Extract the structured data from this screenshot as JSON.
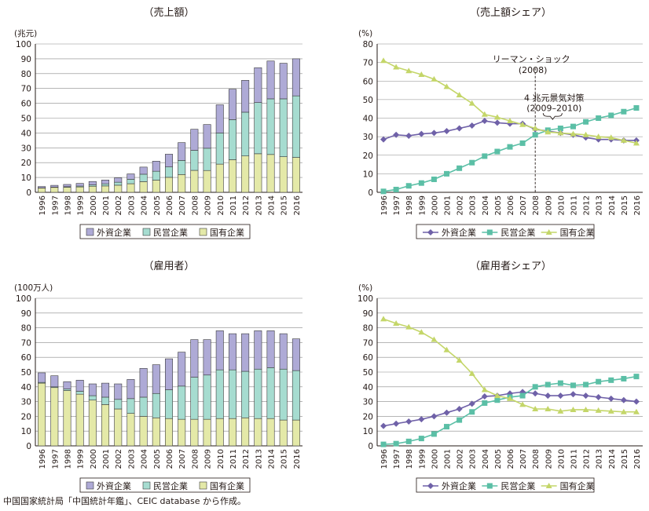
{
  "source_note": "中国国家統計局「中国統計年鑑」、CEIC database から作成。",
  "legend_labels": [
    "外資企業",
    "民営企業",
    "国有企業"
  ],
  "colors": {
    "foreign": "#aeaad6",
    "private": "#a6dcd0",
    "state": "#e4e9a8",
    "foreign_line": "#6f61a8",
    "private_line": "#5bbfa6",
    "state_line": "#c4d669",
    "axis": "#231815"
  },
  "chart_data": [
    {
      "type": "bar",
      "title": "（売上額）",
      "unit": "(兆元)",
      "ylim": [
        0,
        100
      ],
      "yticks": [
        0,
        10,
        20,
        30,
        40,
        50,
        60,
        70,
        80,
        90,
        100
      ],
      "categories": [
        "1996",
        "1997",
        "1998",
        "1999",
        "2000",
        "2001",
        "2002",
        "2003",
        "2004",
        "2005",
        "2006",
        "2007",
        "2008",
        "2009",
        "2010",
        "2011",
        "2012",
        "2013",
        "2014",
        "2015",
        "2016"
      ],
      "series": [
        {
          "name": "国有企業",
          "values": [
            2.9,
            3.3,
            3.4,
            3.6,
            4.1,
            4.3,
            4.8,
            5.8,
            7.2,
            8.2,
            10.1,
            12.0,
            14.8,
            14.7,
            19.0,
            22.0,
            24.5,
            26.0,
            25.5,
            24.0,
            23.5
          ]
        },
        {
          "name": "民営企業",
          "values": [
            0.1,
            0.2,
            0.4,
            0.6,
            0.9,
            1.4,
            2.0,
            3.0,
            5.0,
            6.0,
            7.0,
            9.5,
            13.5,
            15.0,
            21.0,
            27.0,
            29.5,
            34.5,
            37.5,
            39.0,
            41.5
          ]
        },
        {
          "name": "外資企業",
          "values": [
            0.9,
            1.2,
            1.5,
            1.8,
            2.3,
            2.6,
            3.0,
            3.6,
            4.8,
            6.8,
            8.6,
            12.0,
            14.2,
            16.0,
            19.0,
            20.5,
            21.5,
            23.5,
            25.5,
            24.0,
            25.0
          ]
        }
      ]
    },
    {
      "type": "line",
      "title": "（売上額シェア）",
      "unit": "(%)",
      "ylim": [
        0,
        80
      ],
      "yticks": [
        0,
        10,
        20,
        30,
        40,
        50,
        60,
        70,
        80
      ],
      "categories": [
        "1996",
        "1997",
        "1998",
        "1999",
        "2000",
        "2001",
        "2002",
        "2003",
        "2004",
        "2005",
        "2006",
        "2007",
        "2008",
        "2009",
        "2010",
        "2011",
        "2012",
        "2013",
        "2014",
        "2015",
        "2016"
      ],
      "annotations": [
        "リーマン・ショック",
        "(2008)",
        "4 兆元景気対策",
        "(2009–2010)"
      ],
      "marker_year": "2008",
      "series": [
        {
          "name": "外資企業",
          "values": [
            28.5,
            31.0,
            30.5,
            31.5,
            32.0,
            33.0,
            34.5,
            36.0,
            38.5,
            37.5,
            37.0,
            37.0,
            34.0,
            33.0,
            32.0,
            31.0,
            29.5,
            28.5,
            28.5,
            28.0,
            28.0
          ]
        },
        {
          "name": "民営企業",
          "values": [
            0.5,
            1.5,
            3.5,
            5.0,
            7.0,
            10.0,
            13.0,
            16.0,
            19.5,
            22.0,
            24.5,
            26.5,
            31.0,
            33.5,
            34.5,
            35.5,
            38.0,
            40.0,
            41.5,
            43.5,
            45.5
          ]
        },
        {
          "name": "国有企業",
          "values": [
            71.0,
            67.5,
            65.5,
            63.5,
            61.0,
            57.0,
            52.5,
            48.0,
            42.0,
            40.5,
            38.5,
            36.5,
            34.5,
            32.5,
            32.0,
            31.5,
            31.0,
            30.0,
            29.5,
            28.0,
            26.5
          ]
        }
      ]
    },
    {
      "type": "bar",
      "title": "（雇用者）",
      "unit": "(100万人)",
      "ylim": [
        0,
        100
      ],
      "yticks": [
        0,
        10,
        20,
        30,
        40,
        50,
        60,
        70,
        80,
        90,
        100
      ],
      "categories": [
        "1996",
        "1997",
        "1998",
        "1999",
        "2000",
        "2001",
        "2002",
        "2003",
        "2004",
        "2005",
        "2006",
        "2007",
        "2008",
        "2009",
        "2010",
        "2011",
        "2012",
        "2013",
        "2014",
        "2015",
        "2016"
      ],
      "series": [
        {
          "name": "国有企業",
          "values": [
            42.5,
            39.5,
            37.5,
            35.0,
            31.0,
            28.0,
            25.0,
            22.0,
            20.0,
            19.0,
            18.5,
            18.0,
            18.0,
            18.0,
            18.5,
            18.5,
            19.0,
            18.5,
            18.5,
            17.5,
            17.5
          ]
        },
        {
          "name": "民営企業",
          "values": [
            0.5,
            0.5,
            1.0,
            2.0,
            3.0,
            5.0,
            6.5,
            10.0,
            13.0,
            16.5,
            19.5,
            22.5,
            28.5,
            30.0,
            33.0,
            33.0,
            31.5,
            33.5,
            34.5,
            34.5,
            33.5
          ]
        },
        {
          "name": "外資企業",
          "values": [
            6.5,
            7.5,
            5.0,
            7.5,
            8.0,
            9.5,
            10.5,
            13.0,
            19.5,
            19.5,
            21.0,
            23.0,
            25.5,
            24.0,
            26.5,
            24.5,
            25.5,
            26.0,
            25.0,
            24.0,
            21.5
          ]
        }
      ]
    },
    {
      "type": "line",
      "title": "（雇用者シェア）",
      "unit": "(%)",
      "ylim": [
        0,
        100
      ],
      "yticks": [
        0,
        10,
        20,
        30,
        40,
        50,
        60,
        70,
        80,
        90,
        100
      ],
      "categories": [
        "1996",
        "1997",
        "1998",
        "1999",
        "2000",
        "2001",
        "2002",
        "2003",
        "2004",
        "2005",
        "2006",
        "2007",
        "2008",
        "2009",
        "2010",
        "2011",
        "2012",
        "2013",
        "2014",
        "2015",
        "2016"
      ],
      "series": [
        {
          "name": "外資企業",
          "values": [
            13.5,
            15.0,
            16.5,
            18.0,
            20.0,
            22.5,
            25.0,
            28.5,
            33.5,
            34.0,
            35.5,
            36.5,
            35.5,
            34.0,
            34.0,
            35.0,
            34.0,
            33.0,
            32.0,
            31.0,
            30.0
          ]
        },
        {
          "name": "民営企業",
          "values": [
            1.0,
            1.5,
            3.0,
            5.0,
            8.0,
            13.0,
            17.5,
            23.0,
            29.0,
            31.0,
            33.0,
            34.0,
            40.0,
            41.5,
            42.5,
            41.0,
            41.5,
            43.5,
            44.5,
            45.5,
            47.0
          ]
        },
        {
          "name": "国有企業",
          "values": [
            86.0,
            83.0,
            80.5,
            77.0,
            72.0,
            65.0,
            58.0,
            49.0,
            38.0,
            34.0,
            32.0,
            28.0,
            25.0,
            25.0,
            23.5,
            24.5,
            24.5,
            24.0,
            23.5,
            23.0,
            23.0
          ]
        }
      ]
    }
  ]
}
